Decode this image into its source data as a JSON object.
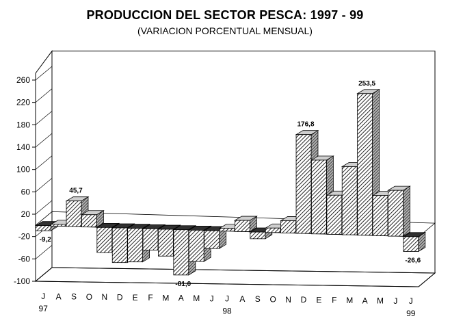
{
  "chart_data": {
    "type": "bar",
    "title": "PRODUCCION DEL SECTOR PESCA: 1997 - 99",
    "subtitle": "(VARIACION PORCENTUAL MENSUAL)",
    "xlabel": "",
    "ylabel": "",
    "ylim": [
      -100,
      280
    ],
    "yticks": [
      260,
      220,
      180,
      140,
      100,
      60,
      20,
      -20,
      -60,
      -100
    ],
    "grid": false,
    "legend": "none",
    "categories": [
      "J",
      "A",
      "S",
      "O",
      "N",
      "D",
      "E",
      "F",
      "M",
      "A",
      "M",
      "J",
      "J",
      "A",
      "S",
      "O",
      "N",
      "D",
      "E",
      "F",
      "M",
      "A",
      "M",
      "J",
      "J"
    ],
    "year_labels": [
      {
        "index": 0,
        "label": "97"
      },
      {
        "index": 12,
        "label": "98"
      },
      {
        "index": 24,
        "label": "99"
      }
    ],
    "values": [
      -9.2,
      3,
      45.7,
      22,
      -45,
      -62,
      -60,
      -38,
      -48,
      -81.0,
      -56,
      -32,
      5,
      20,
      -12,
      8,
      22,
      176.8,
      132,
      70,
      122,
      253.5,
      72,
      82,
      -26.6
    ],
    "data_labels": [
      {
        "index": 0,
        "label": "-9,2"
      },
      {
        "index": 2,
        "label": "45,7"
      },
      {
        "index": 9,
        "label": "-81,0"
      },
      {
        "index": 17,
        "label": "176,8"
      },
      {
        "index": 21,
        "label": "253,5"
      },
      {
        "index": 24,
        "label": "-26,6"
      }
    ],
    "colors": {
      "bar_front_stripes": "#000000",
      "bar_front_background": "#ffffff",
      "bar_side": "#9a9a9a",
      "bar_top": "#c8c8c8",
      "axis": "#000000"
    }
  }
}
